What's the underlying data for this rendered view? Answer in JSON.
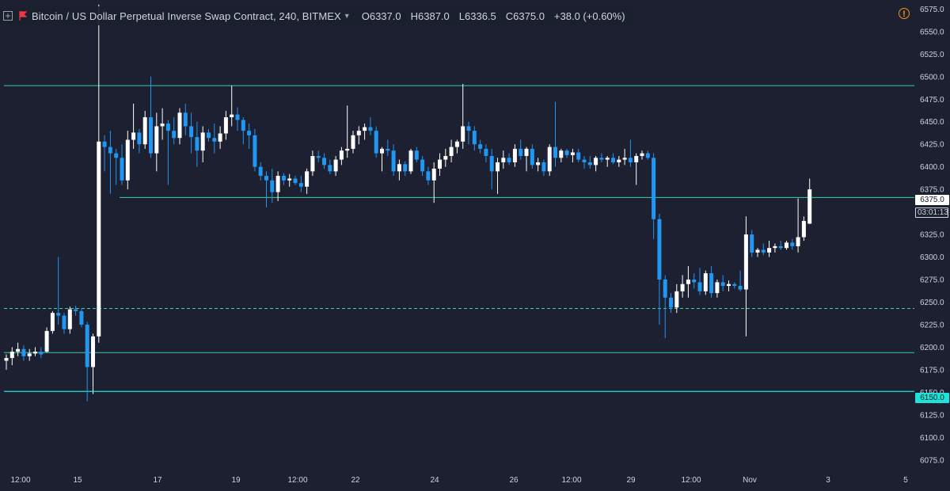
{
  "header": {
    "title": "Bitcoin / US Dollar Perpetual Inverse Swap Contract, 240, BITMEX",
    "ohlc": [
      {
        "key": "O",
        "value": "6337.0"
      },
      {
        "key": "H",
        "value": "6387.0"
      },
      {
        "key": "L",
        "value": "6336.5"
      },
      {
        "key": "C",
        "value": "6375.0"
      }
    ],
    "change": "+38.0 (+0.60%)"
  },
  "colors": {
    "background": "#1c2030",
    "up": "#ffffff",
    "down": "#2196f3",
    "level_line": "#3ad29f",
    "cyan_line": "#1ee3d8",
    "warning": "#f7931a"
  },
  "price_badge": {
    "value": "6375.0",
    "countdown": "03:01:13"
  },
  "level_badge": {
    "value": "6150.0"
  },
  "chart_data": {
    "type": "candlestick",
    "ylim": [
      6062.5,
      6585
    ],
    "y_ticks": [
      "6575.0",
      "6550.0",
      "6525.0",
      "6500.0",
      "6475.0",
      "6450.0",
      "6425.0",
      "6400.0",
      "6375.0",
      "6350.0",
      "6325.0",
      "6300.0",
      "6275.0",
      "6250.0",
      "6225.0",
      "6200.0",
      "6175.0",
      "6150.0",
      "6125.0",
      "6100.0",
      "6075.0"
    ],
    "x_ticks": [
      "12:00",
      "15",
      "17",
      "19",
      "12:00",
      "22",
      "24",
      "26",
      "12:00",
      "29",
      "12:00",
      "Nov",
      "3",
      "5"
    ],
    "horizontal_levels": [
      {
        "price": 6490,
        "style": "solid",
        "start_index": 0
      },
      {
        "price": 6366,
        "style": "solid",
        "start_index": 20
      },
      {
        "price": 6243,
        "style": "dashed",
        "start_index": 0
      },
      {
        "price": 6194,
        "style": "solid",
        "start_index": 0
      },
      {
        "price": 6151,
        "style": "solid-cyan",
        "start_index": 0
      }
    ],
    "candles": [
      [
        6185,
        6192,
        6175,
        6188
      ],
      [
        6188,
        6200,
        6180,
        6195
      ],
      [
        6195,
        6205,
        6190,
        6198
      ],
      [
        6198,
        6202,
        6185,
        6190
      ],
      [
        6190,
        6198,
        6185,
        6193
      ],
      [
        6193,
        6200,
        6190,
        6195
      ],
      [
        6195,
        6200,
        6188,
        6192
      ],
      [
        6195,
        6222,
        6194,
        6218
      ],
      [
        6218,
        6240,
        6215,
        6238
      ],
      [
        6238,
        6300,
        6225,
        6235
      ],
      [
        6235,
        6238,
        6215,
        6220
      ],
      [
        6220,
        6245,
        6215,
        6242
      ],
      [
        6242,
        6246,
        6235,
        6240
      ],
      [
        6240,
        6243,
        6222,
        6225
      ],
      [
        6225,
        6228,
        6140,
        6178
      ],
      [
        6178,
        6215,
        6148,
        6212
      ],
      [
        6212,
        6580,
        6205,
        6428
      ],
      [
        6428,
        6435,
        6395,
        6422
      ],
      [
        6422,
        6440,
        6370,
        6415
      ],
      [
        6415,
        6420,
        6380,
        6410
      ],
      [
        6410,
        6425,
        6380,
        6385
      ],
      [
        6385,
        6440,
        6375,
        6430
      ],
      [
        6430,
        6470,
        6420,
        6438
      ],
      [
        6438,
        6442,
        6415,
        6425
      ],
      [
        6425,
        6462,
        6420,
        6455
      ],
      [
        6455,
        6500,
        6410,
        6415
      ],
      [
        6415,
        6460,
        6395,
        6445
      ],
      [
        6445,
        6465,
        6430,
        6448
      ],
      [
        6448,
        6452,
        6380,
        6440
      ],
      [
        6440,
        6455,
        6425,
        6432
      ],
      [
        6432,
        6465,
        6425,
        6460
      ],
      [
        6460,
        6470,
        6435,
        6445
      ],
      [
        6445,
        6460,
        6415,
        6433
      ],
      [
        6433,
        6450,
        6400,
        6418
      ],
      [
        6418,
        6445,
        6405,
        6438
      ],
      [
        6438,
        6442,
        6428,
        6432
      ],
      [
        6432,
        6448,
        6415,
        6428
      ],
      [
        6428,
        6445,
        6420,
        6437
      ],
      [
        6437,
        6462,
        6430,
        6455
      ],
      [
        6455,
        6490,
        6445,
        6458
      ],
      [
        6458,
        6466,
        6440,
        6452
      ],
      [
        6452,
        6455,
        6425,
        6440
      ],
      [
        6440,
        6448,
        6420,
        6435
      ],
      [
        6435,
        6442,
        6395,
        6400
      ],
      [
        6400,
        6405,
        6385,
        6390
      ],
      [
        6390,
        6395,
        6355,
        6385
      ],
      [
        6385,
        6398,
        6360,
        6372
      ],
      [
        6372,
        6395,
        6362,
        6390
      ],
      [
        6390,
        6393,
        6380,
        6385
      ],
      [
        6385,
        6392,
        6378,
        6387
      ],
      [
        6387,
        6390,
        6380,
        6382
      ],
      [
        6382,
        6390,
        6372,
        6378
      ],
      [
        6378,
        6398,
        6370,
        6395
      ],
      [
        6395,
        6418,
        6390,
        6412
      ],
      [
        6412,
        6418,
        6405,
        6410
      ],
      [
        6410,
        6415,
        6398,
        6402
      ],
      [
        6402,
        6408,
        6392,
        6395
      ],
      [
        6395,
        6412,
        6390,
        6408
      ],
      [
        6408,
        6422,
        6402,
        6418
      ],
      [
        6418,
        6468,
        6410,
        6420
      ],
      [
        6420,
        6440,
        6415,
        6435
      ],
      [
        6435,
        6445,
        6425,
        6440
      ],
      [
        6440,
        6448,
        6430,
        6444
      ],
      [
        6444,
        6455,
        6435,
        6440
      ],
      [
        6440,
        6445,
        6410,
        6415
      ],
      [
        6415,
        6422,
        6395,
        6420
      ],
      [
        6420,
        6430,
        6412,
        6418
      ],
      [
        6418,
        6425,
        6390,
        6395
      ],
      [
        6395,
        6408,
        6385,
        6403
      ],
      [
        6403,
        6406,
        6390,
        6395
      ],
      [
        6395,
        6420,
        6392,
        6418
      ],
      [
        6418,
        6422,
        6405,
        6408
      ],
      [
        6408,
        6412,
        6390,
        6395
      ],
      [
        6395,
        6400,
        6380,
        6385
      ],
      [
        6385,
        6405,
        6360,
        6398
      ],
      [
        6398,
        6415,
        6390,
        6408
      ],
      [
        6408,
        6420,
        6400,
        6412
      ],
      [
        6412,
        6430,
        6405,
        6422
      ],
      [
        6422,
        6430,
        6415,
        6428
      ],
      [
        6428,
        6492,
        6420,
        6445
      ],
      [
        6445,
        6450,
        6425,
        6440
      ],
      [
        6440,
        6445,
        6418,
        6425
      ],
      [
        6425,
        6430,
        6415,
        6420
      ],
      [
        6420,
        6425,
        6405,
        6412
      ],
      [
        6412,
        6420,
        6375,
        6395
      ],
      [
        6395,
        6410,
        6370,
        6405
      ],
      [
        6405,
        6418,
        6398,
        6410
      ],
      [
        6410,
        6415,
        6402,
        6405
      ],
      [
        6405,
        6425,
        6400,
        6420
      ],
      [
        6420,
        6430,
        6408,
        6412
      ],
      [
        6412,
        6422,
        6395,
        6420
      ],
      [
        6420,
        6425,
        6398,
        6402
      ],
      [
        6402,
        6410,
        6395,
        6405
      ],
      [
        6405,
        6408,
        6390,
        6395
      ],
      [
        6395,
        6425,
        6390,
        6422
      ],
      [
        6422,
        6472,
        6400,
        6410
      ],
      [
        6410,
        6420,
        6405,
        6418
      ],
      [
        6418,
        6420,
        6410,
        6413
      ],
      [
        6413,
        6420,
        6405,
        6416
      ],
      [
        6416,
        6420,
        6405,
        6408
      ],
      [
        6408,
        6412,
        6398,
        6405
      ],
      [
        6405,
        6412,
        6398,
        6402
      ],
      [
        6402,
        6412,
        6395,
        6410
      ],
      [
        6410,
        6415,
        6405,
        6408
      ],
      [
        6408,
        6412,
        6400,
        6410
      ],
      [
        6410,
        6415,
        6403,
        6405
      ],
      [
        6405,
        6412,
        6400,
        6408
      ],
      [
        6408,
        6420,
        6402,
        6410
      ],
      [
        6410,
        6430,
        6400,
        6405
      ],
      [
        6405,
        6415,
        6380,
        6412
      ],
      [
        6412,
        6418,
        6408,
        6415
      ],
      [
        6415,
        6418,
        6408,
        6410
      ],
      [
        6410,
        6415,
        6320,
        6342
      ],
      [
        6342,
        6348,
        6225,
        6275
      ],
      [
        6275,
        6280,
        6210,
        6255
      ],
      [
        6255,
        6260,
        6238,
        6244
      ],
      [
        6244,
        6270,
        6238,
        6262
      ],
      [
        6262,
        6280,
        6255,
        6270
      ],
      [
        6270,
        6290,
        6255,
        6275
      ],
      [
        6275,
        6282,
        6265,
        6272
      ],
      [
        6272,
        6288,
        6258,
        6262
      ],
      [
        6262,
        6285,
        6258,
        6282
      ],
      [
        6282,
        6290,
        6255,
        6260
      ],
      [
        6260,
        6275,
        6255,
        6272
      ],
      [
        6272,
        6280,
        6262,
        6268
      ],
      [
        6268,
        6274,
        6262,
        6270
      ],
      [
        6270,
        6272,
        6265,
        6268
      ],
      [
        6268,
        6285,
        6262,
        6264
      ],
      [
        6264,
        6345,
        6212,
        6325
      ],
      [
        6325,
        6330,
        6300,
        6305
      ],
      [
        6305,
        6310,
        6300,
        6308
      ],
      [
        6308,
        6315,
        6302,
        6305
      ],
      [
        6305,
        6318,
        6300,
        6310
      ],
      [
        6310,
        6315,
        6305,
        6312
      ],
      [
        6312,
        6318,
        6308,
        6310
      ],
      [
        6310,
        6318,
        6308,
        6316
      ],
      [
        6316,
        6320,
        6308,
        6312
      ],
      [
        6312,
        6365,
        6305,
        6322
      ],
      [
        6322,
        6345,
        6318,
        6340
      ],
      [
        6337,
        6387,
        6336.5,
        6375
      ]
    ]
  }
}
